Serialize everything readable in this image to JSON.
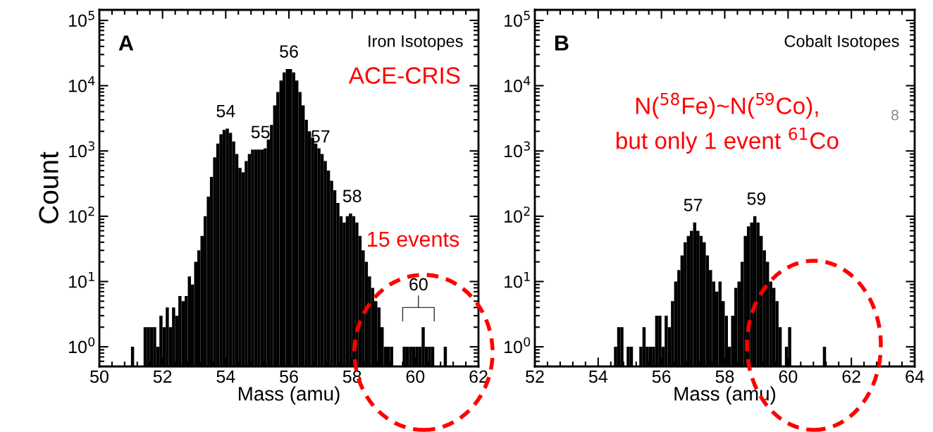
{
  "chart_data": [
    {
      "type": "histogram",
      "color": "#000000",
      "log": true,
      "xlabel": "Mass (amu)",
      "ylabel": "Count",
      "bins": [
        51.0,
        51.1,
        51.2,
        51.3,
        51.4,
        51.5,
        51.6,
        51.7,
        51.8,
        51.9,
        52.0,
        52.1,
        52.2,
        52.3,
        52.4,
        52.5,
        52.6,
        52.7,
        52.8,
        52.9,
        53.0,
        53.1,
        53.2,
        53.3,
        53.4,
        53.5,
        53.6,
        53.7,
        53.8,
        53.9,
        54.0,
        54.1,
        54.2,
        54.3,
        54.4,
        54.5,
        54.6,
        54.7,
        54.8,
        54.9,
        55.0,
        55.1,
        55.2,
        55.3,
        55.4,
        55.5,
        55.6,
        55.7,
        55.8,
        55.9,
        56.0,
        56.1,
        56.2,
        56.3,
        56.4,
        56.5,
        56.6,
        56.7,
        56.8,
        56.9,
        57.0,
        57.1,
        57.2,
        57.3,
        57.4,
        57.5,
        57.6,
        57.7,
        57.8,
        57.9,
        58.0,
        58.1,
        58.2,
        58.3,
        58.4,
        58.5,
        58.6,
        58.7,
        58.8,
        58.9,
        59.0,
        59.1,
        59.2,
        59.3,
        59.4,
        59.5,
        59.6,
        59.7,
        59.8,
        59.9,
        60.0,
        60.1,
        60.2,
        60.3,
        60.4,
        60.5,
        60.6,
        60.7,
        60.8,
        60.9,
        61.0
      ],
      "values": [
        1,
        null,
        null,
        null,
        2,
        2,
        2,
        2,
        1,
        3,
        2,
        4,
        2,
        4,
        3,
        6,
        5,
        6,
        12,
        9,
        20,
        30,
        50,
        100,
        200,
        400,
        800,
        1300,
        1800,
        2100,
        2200,
        1900,
        1400,
        900,
        550,
        470,
        700,
        900,
        1050,
        1050,
        1050,
        1050,
        1100,
        1500,
        2500,
        5000,
        8000,
        12000,
        16000,
        18000,
        18000,
        16000,
        12000,
        8000,
        5000,
        3000,
        2000,
        1600,
        1300,
        1100,
        900,
        700,
        500,
        350,
        250,
        160,
        100,
        80,
        100,
        110,
        100,
        80,
        50,
        30,
        20,
        12,
        8,
        5,
        4,
        2,
        1,
        1,
        1,
        null,
        null,
        null,
        1,
        1,
        1,
        1,
        1,
        1,
        2,
        1,
        1,
        1,
        null,
        null,
        null,
        1
      ],
      "xlim": [
        50,
        62
      ],
      "xticks": [
        50,
        52,
        54,
        56,
        58,
        60,
        62
      ],
      "ylim": [
        0.5,
        145000
      ],
      "yticks": [
        {
          "value": 1,
          "label": "10$^{0}$"
        },
        {
          "value": 10,
          "label": "10$^{1}$"
        },
        {
          "value": 100,
          "label": "10$^{2}$"
        },
        {
          "value": 1000,
          "label": "10$^{3}$"
        },
        {
          "value": 10000,
          "label": "10$^{4}$"
        },
        {
          "value": 100000,
          "label": "10$^{5}$"
        }
      ],
      "annotations": [
        {
          "text": "54",
          "x": 54.0,
          "y": 2200
        },
        {
          "text": "55",
          "x": 55.1,
          "y": 1050
        },
        {
          "text": "56",
          "x": 56.0,
          "y": 18000
        },
        {
          "text": "57",
          "x": 57.0,
          "y": 900
        },
        {
          "text": "58",
          "x": 58.0,
          "y": 110
        },
        {
          "text": "60",
          "x": 60.1,
          "y": 2
        },
        "A",
        "Iron Isotopes",
        "ACE-CRIS",
        "15 events"
      ]
    },
    {
      "type": "histogram",
      "color": "#000000",
      "log": true,
      "xlabel": "Mass (amu)",
      "bins": [
        54.5,
        54.6,
        54.7,
        54.8,
        54.9,
        55.0,
        55.1,
        55.2,
        55.3,
        55.4,
        55.5,
        55.6,
        55.7,
        55.8,
        55.9,
        56.0,
        56.1,
        56.2,
        56.3,
        56.4,
        56.5,
        56.6,
        56.7,
        56.8,
        56.9,
        57.0,
        57.1,
        57.2,
        57.3,
        57.4,
        57.5,
        57.6,
        57.7,
        57.8,
        57.9,
        58.0,
        58.1,
        58.2,
        58.3,
        58.4,
        58.5,
        58.6,
        58.7,
        58.8,
        58.9,
        59.0,
        59.1,
        59.2,
        59.3,
        59.4,
        59.5,
        59.6,
        59.7,
        59.8,
        59.9,
        60.0,
        60.1,
        60.2,
        60.3,
        60.4,
        60.5,
        60.6,
        60.7,
        60.8,
        60.9,
        61.0,
        61.1,
        61.2
      ],
      "values": [
        1,
        2,
        2,
        null,
        1,
        1,
        null,
        null,
        1,
        2,
        1,
        1,
        1,
        3,
        3,
        1,
        3,
        2,
        5,
        10,
        15,
        25,
        40,
        50,
        60,
        80,
        60,
        50,
        40,
        25,
        15,
        10,
        7,
        10,
        5,
        3,
        1,
        3,
        8,
        10,
        20,
        50,
        70,
        80,
        100,
        80,
        50,
        30,
        20,
        10,
        8,
        5,
        2,
        null,
        1,
        2,
        null,
        null,
        null,
        null,
        null,
        null,
        null,
        null,
        null,
        null,
        1
      ],
      "xlim": [
        52,
        64
      ],
      "xticks": [
        52,
        54,
        56,
        58,
        60,
        62,
        64
      ],
      "ylim": [
        0.5,
        145000
      ],
      "yticks": [
        {
          "value": 1,
          "label": "10$^{0}$"
        },
        {
          "value": 10,
          "label": "10$^{1}$"
        },
        {
          "value": 100,
          "label": "10$^{2}$"
        },
        {
          "value": 1000,
          "label": "10$^{3}$"
        },
        {
          "value": 10000,
          "label": "10$^{4}$"
        },
        {
          "value": 100000,
          "label": "10$^{5}$"
        }
      ],
      "annotations": [
        {
          "text": "57",
          "x": 57.0,
          "y": 80
        },
        {
          "text": "59",
          "x": 59.0,
          "y": 100
        },
        "B",
        "Cobalt Isotopes",
        "N($^{58}$Fe)~N($^{59}$Co),\nbut only 1 event $^{61}$Co",
        "8"
      ]
    }
  ]
}
